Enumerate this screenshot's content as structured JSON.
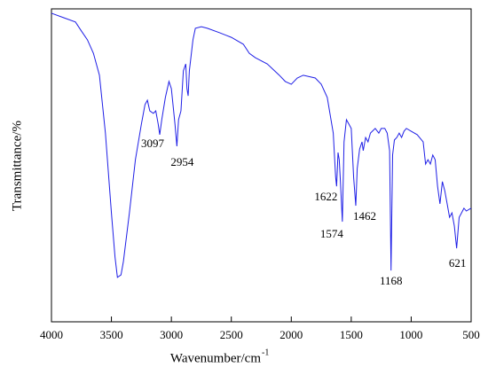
{
  "chart_data": {
    "type": "line",
    "ylabel": "Transmittance/%",
    "xlabel": "Wavenumber/cm",
    "xlabel_sup": "-1",
    "xlim": [
      4000,
      500
    ],
    "xticks": [
      4000,
      3500,
      3000,
      2500,
      2000,
      1500,
      1000,
      500
    ],
    "ylim": [
      0,
      100
    ],
    "peak_labels": [
      3097,
      2954,
      1622,
      1574,
      1462,
      1168,
      621
    ],
    "x": [
      4000,
      3900,
      3800,
      3750,
      3700,
      3650,
      3600,
      3550,
      3500,
      3470,
      3450,
      3420,
      3400,
      3350,
      3300,
      3250,
      3220,
      3200,
      3180,
      3150,
      3130,
      3110,
      3097,
      3080,
      3050,
      3020,
      3000,
      2970,
      2954,
      2940,
      2920,
      2900,
      2880,
      2870,
      2860,
      2850,
      2820,
      2800,
      2750,
      2700,
      2600,
      2500,
      2400,
      2350,
      2300,
      2200,
      2100,
      2050,
      2000,
      1950,
      1900,
      1800,
      1750,
      1700,
      1650,
      1630,
      1622,
      1610,
      1600,
      1590,
      1574,
      1560,
      1540,
      1520,
      1500,
      1480,
      1462,
      1450,
      1430,
      1410,
      1400,
      1380,
      1360,
      1340,
      1300,
      1270,
      1250,
      1220,
      1200,
      1180,
      1168,
      1155,
      1140,
      1120,
      1100,
      1080,
      1060,
      1040,
      1000,
      950,
      900,
      880,
      860,
      840,
      820,
      800,
      780,
      760,
      740,
      720,
      700,
      680,
      660,
      640,
      621,
      600,
      580,
      560,
      540,
      500
    ],
    "series": [
      {
        "color": "#1f1fe6",
        "values": [
          98.6,
          97.2,
          95.8,
          92.9,
          90.1,
          85.8,
          78.8,
          60.3,
          34.8,
          20.7,
          14.2,
          15.0,
          19.3,
          34.8,
          51.8,
          63.2,
          69.4,
          70.8,
          67.4,
          66.6,
          67.4,
          63.2,
          59.8,
          64.6,
          71.7,
          76.8,
          74.5,
          63.2,
          56.1,
          64.6,
          67.4,
          80.2,
          82.4,
          74.5,
          72.2,
          80.2,
          90.1,
          93.8,
          94.3,
          93.8,
          92.4,
          90.9,
          88.7,
          85.8,
          84.4,
          82.4,
          78.8,
          76.8,
          75.9,
          77.9,
          78.8,
          77.9,
          75.9,
          71.7,
          60.3,
          46.2,
          43.3,
          54.1,
          51.8,
          44.8,
          32.0,
          57.5,
          64.6,
          63.2,
          61.8,
          46.2,
          37.1,
          49.0,
          55.2,
          57.5,
          54.7,
          58.9,
          57.5,
          60.3,
          61.8,
          60.3,
          61.8,
          61.8,
          60.3,
          54.7,
          16.4,
          53.3,
          58.1,
          58.9,
          60.3,
          58.9,
          60.9,
          61.8,
          60.9,
          59.8,
          57.5,
          50.4,
          51.8,
          50.4,
          53.3,
          51.8,
          43.3,
          37.7,
          44.8,
          41.9,
          37.7,
          33.4,
          34.8,
          30.6,
          23.5,
          33.4,
          34.8,
          36.3,
          35.4,
          36.3
        ]
      }
    ]
  }
}
